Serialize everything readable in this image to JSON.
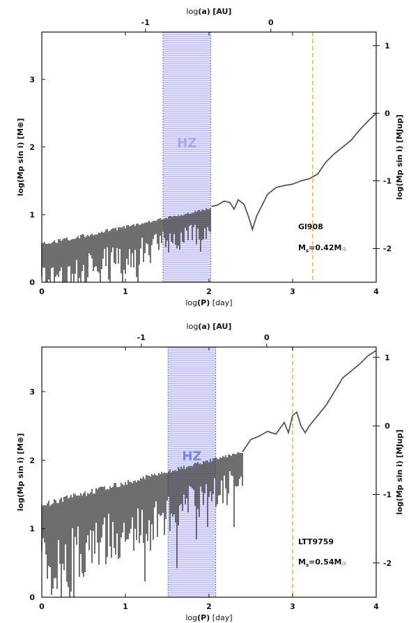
{
  "chart_data": [
    {
      "type": "line",
      "panel": "top",
      "star": "Gl908",
      "mass_label": "M",
      "mass_sub": "s",
      "mass_value": "=0.42M",
      "sun_symbol": "☉",
      "hz_label": "HZ",
      "hz_range_logP": [
        1.45,
        2.02
      ],
      "snow_line_logP": 3.24,
      "xlabel_prefix": "log",
      "xlabel_var": "(P)",
      "xlabel_unit": "[day]",
      "top_label_prefix": "log",
      "top_label_var": "(a)",
      "top_label_unit": "[AU]",
      "ylabel_left": "log(Mp sin i) [M⊕]",
      "ylabel_right": "log(Mp sin i) [MJup]",
      "xlim": [
        0,
        4
      ],
      "ylim": [
        0,
        3.7
      ],
      "x_ticks": [
        "0",
        "1",
        "2",
        "3",
        "4"
      ],
      "y_ticks": [
        "0",
        "1",
        "2",
        "3"
      ],
      "right_ticks": [
        {
          "label": "1",
          "value": 3.5
        },
        {
          "label": "0",
          "value": 2.5
        },
        {
          "label": "-1",
          "value": 1.5
        },
        {
          "label": "-2",
          "value": 0.5
        }
      ],
      "top_ticks": [
        {
          "label": "-1",
          "logP": 1.24
        },
        {
          "label": "0",
          "logP": 2.74
        }
      ],
      "noise": {
        "x_start": 0,
        "x_end": 2.03,
        "base_start": 0.52,
        "base_end": 1.08,
        "amp_start": 0.55,
        "amp_end": 0.25,
        "seed": 7
      },
      "smooth_curve": [
        [
          2.03,
          1.12
        ],
        [
          2.1,
          1.14
        ],
        [
          2.18,
          1.2
        ],
        [
          2.25,
          1.18
        ],
        [
          2.3,
          1.08
        ],
        [
          2.35,
          1.22
        ],
        [
          2.42,
          1.15
        ],
        [
          2.47,
          0.98
        ],
        [
          2.52,
          0.78
        ],
        [
          2.57,
          0.98
        ],
        [
          2.62,
          1.1
        ],
        [
          2.7,
          1.3
        ],
        [
          2.8,
          1.4
        ],
        [
          2.9,
          1.43
        ],
        [
          3.0,
          1.45
        ],
        [
          3.1,
          1.5
        ],
        [
          3.2,
          1.53
        ],
        [
          3.3,
          1.6
        ],
        [
          3.4,
          1.78
        ],
        [
          3.5,
          1.9
        ],
        [
          3.6,
          2.0
        ],
        [
          3.7,
          2.1
        ],
        [
          3.8,
          2.25
        ],
        [
          3.9,
          2.38
        ],
        [
          4.0,
          2.5
        ]
      ]
    },
    {
      "type": "line",
      "panel": "bottom",
      "star": "LTT9759",
      "mass_label": "M",
      "mass_sub": "s",
      "mass_value": "=0.54M",
      "sun_symbol": "☉",
      "hz_label": "HZ",
      "hz_range_logP": [
        1.51,
        2.08
      ],
      "snow_line_logP": 3.0,
      "xlabel_prefix": "log",
      "xlabel_var": "(P)",
      "xlabel_unit": "[day]",
      "top_label_prefix": "log",
      "top_label_var": "(a)",
      "top_label_unit": "[AU]",
      "ylabel_left": "log(Mp sin i) [M⊕]",
      "ylabel_right": "log(Mp sin i) [MJup]",
      "xlim": [
        0,
        4
      ],
      "ylim": [
        0,
        3.65
      ],
      "x_ticks": [
        "0",
        "1",
        "2",
        "3",
        "4"
      ],
      "y_ticks": [
        "0",
        "1",
        "2",
        "3"
      ],
      "right_ticks": [
        {
          "label": "1",
          "value": 3.5
        },
        {
          "label": "0",
          "value": 2.5
        },
        {
          "label": "-1",
          "value": 1.5
        },
        {
          "label": "-2",
          "value": 0.5
        }
      ],
      "top_ticks": [
        {
          "label": "-1",
          "logP": 1.19
        },
        {
          "label": "0",
          "logP": 2.69
        }
      ],
      "noise": {
        "x_start": 0,
        "x_end": 2.4,
        "base_start": 1.3,
        "base_end": 2.1,
        "amp_start": 0.8,
        "amp_end": 0.35,
        "seed": 13
      },
      "smooth_curve": [
        [
          2.4,
          2.12
        ],
        [
          2.5,
          2.3
        ],
        [
          2.6,
          2.35
        ],
        [
          2.7,
          2.42
        ],
        [
          2.8,
          2.38
        ],
        [
          2.9,
          2.55
        ],
        [
          2.95,
          2.4
        ],
        [
          3.0,
          2.65
        ],
        [
          3.05,
          2.7
        ],
        [
          3.1,
          2.5
        ],
        [
          3.15,
          2.4
        ],
        [
          3.2,
          2.5
        ],
        [
          3.3,
          2.65
        ],
        [
          3.4,
          2.8
        ],
        [
          3.5,
          3.0
        ],
        [
          3.6,
          3.2
        ],
        [
          3.7,
          3.3
        ],
        [
          3.8,
          3.4
        ],
        [
          3.9,
          3.52
        ],
        [
          4.0,
          3.6
        ]
      ]
    }
  ]
}
